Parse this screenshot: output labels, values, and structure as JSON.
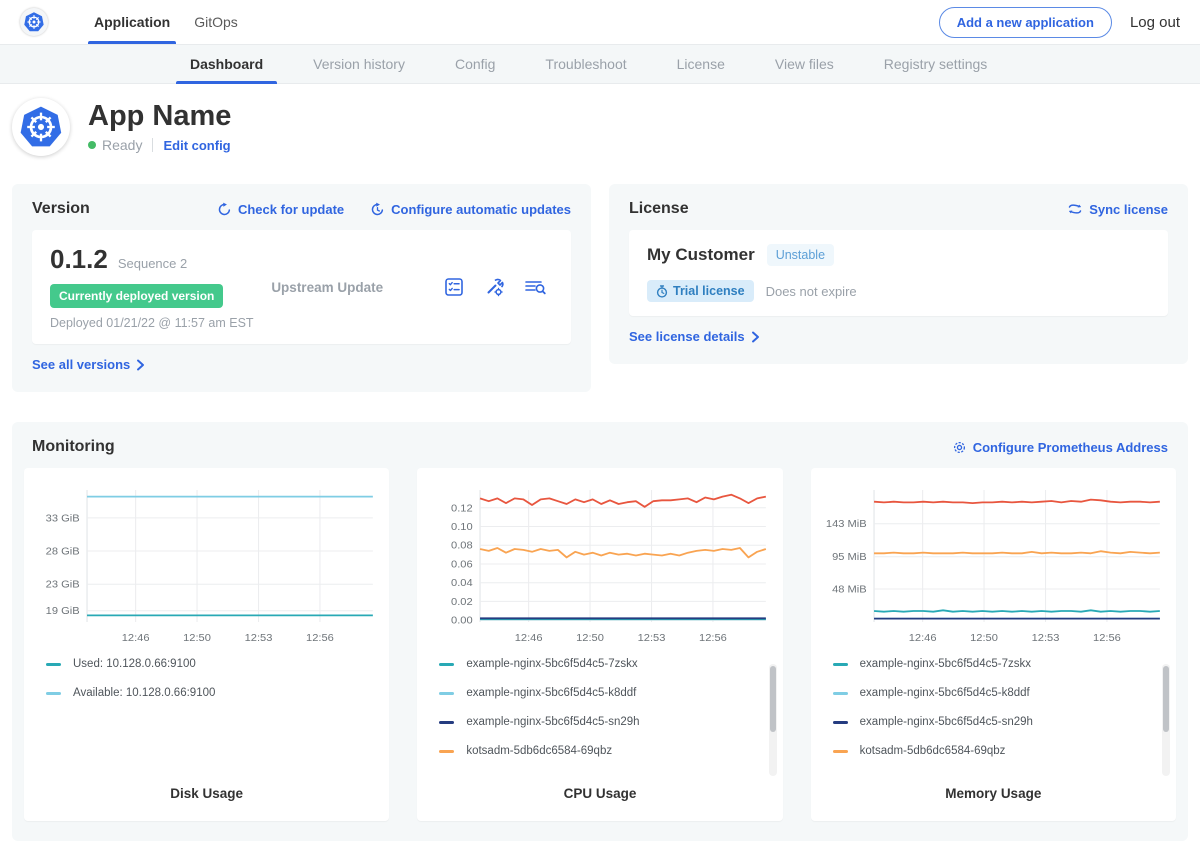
{
  "topbar": {
    "tabs": [
      {
        "label": "Application"
      },
      {
        "label": "GitOps"
      }
    ],
    "add_button_label": "Add a new application",
    "logout_label": "Log out"
  },
  "subnav": {
    "tabs": [
      "Dashboard",
      "Version history",
      "Config",
      "Troubleshoot",
      "License",
      "View files",
      "Registry settings"
    ],
    "active": "Dashboard"
  },
  "app_header": {
    "title": "App Name",
    "status": "Ready",
    "edit_config_label": "Edit config"
  },
  "version_card": {
    "title": "Version",
    "check_for_update_label": "Check for update",
    "configure_updates_label": "Configure automatic updates",
    "version_number": "0.1.2",
    "sequence": "Sequence 2",
    "deployed_badge": "Currently deployed version",
    "deployed_at": "Deployed 01/21/22 @ 11:57 am EST",
    "upstream_label": "Upstream Update",
    "see_all_label": "See all versions"
  },
  "license_card": {
    "title": "License",
    "sync_label": "Sync license",
    "customer_name": "My Customer",
    "channel": "Unstable",
    "type_badge": "Trial license",
    "expiry": "Does not expire",
    "see_details_label": "See license details"
  },
  "monitoring": {
    "title": "Monitoring",
    "configure_label": "Configure Prometheus Address"
  },
  "colors": {
    "accent_blue": "#3065e0",
    "k8s_blue": "#326de6",
    "green_badge": "#44c98c",
    "ready_green": "#44bb66",
    "panel_bg": "#f5f8f9",
    "series_teal": "#28a9b5",
    "series_light_blue": "#7fcde4",
    "series_navy": "#253c80",
    "series_orange": "#f9a452",
    "series_red": "#e8563f"
  },
  "chart_data": [
    {
      "type": "line",
      "title": "Disk Usage",
      "ylim": [
        17.3,
        37.2
      ],
      "y_ticks": [
        {
          "value": 33,
          "label": "33 GiB"
        },
        {
          "value": 28,
          "label": "28 GiB"
        },
        {
          "value": 23,
          "label": "23 GiB"
        },
        {
          "value": 19,
          "label": "19 GiB"
        }
      ],
      "x_ticks": [
        {
          "pos": 0.17,
          "label": "12:46"
        },
        {
          "pos": 0.385,
          "label": "12:50"
        },
        {
          "pos": 0.6,
          "label": "12:53"
        },
        {
          "pos": 0.815,
          "label": "12:56"
        }
      ],
      "series": [
        {
          "name": "Available: 10.128.0.66:9100",
          "color": "#7fcde4",
          "legend_order": 2,
          "values": [
            36.2,
            36.2
          ]
        },
        {
          "name": "Used: 10.128.0.66:9100",
          "color": "#28a9b5",
          "legend_order": 1,
          "values": [
            18.3,
            18.3
          ]
        }
      ],
      "legend": [
        "Used: 10.128.0.66:9100",
        "Available: 10.128.0.66:9100"
      ]
    },
    {
      "type": "line",
      "title": "CPU Usage",
      "ylim": [
        -0.002,
        0.139
      ],
      "y_ticks": [
        {
          "value": 0.12,
          "label": "0.12"
        },
        {
          "value": 0.1,
          "label": "0.10"
        },
        {
          "value": 0.08,
          "label": "0.08"
        },
        {
          "value": 0.06,
          "label": "0.06"
        },
        {
          "value": 0.04,
          "label": "0.04"
        },
        {
          "value": 0.02,
          "label": "0.02"
        },
        {
          "value": 0.0,
          "label": "0.00"
        }
      ],
      "x_ticks": [
        {
          "pos": 0.17,
          "label": "12:46"
        },
        {
          "pos": 0.385,
          "label": "12:50"
        },
        {
          "pos": 0.6,
          "label": "12:53"
        },
        {
          "pos": 0.815,
          "label": "12:56"
        }
      ],
      "series": [
        {
          "color": "#e8563f",
          "in_legend": false,
          "values": [
            0.13,
            0.127,
            0.13,
            0.125,
            0.13,
            0.129,
            0.123,
            0.129,
            0.13,
            0.127,
            0.124,
            0.129,
            0.126,
            0.129,
            0.124,
            0.128,
            0.124,
            0.126,
            0.127,
            0.121,
            0.127,
            0.128,
            0.128,
            0.129,
            0.13,
            0.126,
            0.131,
            0.129,
            0.132,
            0.134,
            0.13,
            0.125,
            0.13,
            0.132
          ]
        },
        {
          "name": "kotsadm-5db6dc6584-69qbz",
          "color": "#f9a452",
          "in_legend": false,
          "values": [
            0.076,
            0.074,
            0.077,
            0.072,
            0.076,
            0.075,
            0.073,
            0.076,
            0.074,
            0.075,
            0.067,
            0.073,
            0.07,
            0.072,
            0.069,
            0.072,
            0.07,
            0.071,
            0.069,
            0.071,
            0.07,
            0.069,
            0.071,
            0.069,
            0.072,
            0.074,
            0.075,
            0.074,
            0.076,
            0.075,
            0.077,
            0.067,
            0.073,
            0.076
          ]
        },
        {
          "name": "example-nginx-5bc6f5d4c5-k8ddf",
          "color": "#7fcde4",
          "in_legend": false,
          "values": [
            0.001,
            0.001
          ]
        },
        {
          "name": "example-nginx-5bc6f5d4c5-7zskx",
          "color": "#28a9b5",
          "in_legend": false,
          "values": [
            0.001,
            0.001
          ]
        },
        {
          "name": "example-nginx-5bc6f5d4c5-sn29h",
          "color": "#253c80",
          "in_legend": false,
          "values": [
            0.002,
            0.002
          ]
        }
      ],
      "legend_items": [
        {
          "name": "example-nginx-5bc6f5d4c5-7zskx",
          "color": "#28a9b5"
        },
        {
          "name": "example-nginx-5bc6f5d4c5-k8ddf",
          "color": "#7fcde4"
        },
        {
          "name": "example-nginx-5bc6f5d4c5-sn29h",
          "color": "#253c80"
        },
        {
          "name": "kotsadm-5db6dc6584-69qbz",
          "color": "#f9a452"
        }
      ],
      "has_scrollbar": true
    },
    {
      "type": "line",
      "title": "Memory Usage",
      "ylim": [
        0,
        192
      ],
      "y_ticks": [
        {
          "value": 143,
          "label": "143 MiB"
        },
        {
          "value": 95,
          "label": "95 MiB"
        },
        {
          "value": 48,
          "label": "48 MiB"
        }
      ],
      "x_ticks": [
        {
          "pos": 0.17,
          "label": "12:46"
        },
        {
          "pos": 0.385,
          "label": "12:50"
        },
        {
          "pos": 0.6,
          "label": "12:53"
        },
        {
          "pos": 0.815,
          "label": "12:56"
        }
      ],
      "series": [
        {
          "color": "#e8563f",
          "in_legend": false,
          "values": [
            175,
            174,
            175,
            174,
            174,
            175,
            174,
            175,
            174,
            174,
            173,
            174,
            174,
            175,
            174,
            175,
            174,
            175,
            176,
            174,
            176,
            175,
            178,
            177,
            175,
            174,
            175,
            175,
            174,
            175
          ]
        },
        {
          "name": "kotsadm-5db6dc6584-69qbz",
          "color": "#f9a452",
          "in_legend": false,
          "values": [
            100,
            100,
            101,
            100,
            100,
            101,
            100,
            100,
            100,
            101,
            100,
            100,
            100,
            101,
            100,
            100,
            102,
            100,
            101,
            100,
            100,
            101,
            100,
            103,
            101,
            100,
            102,
            101,
            100,
            101
          ]
        },
        {
          "name": "example-nginx-5bc6f5d4c5-k8ddf",
          "color": "#7fcde4",
          "in_legend": false,
          "values": [
            5,
            5
          ]
        },
        {
          "name": "example-nginx-5bc6f5d4c5-7zskx",
          "color": "#28a9b5",
          "in_legend": false,
          "values": [
            16,
            15,
            16,
            15,
            16,
            16,
            15,
            17,
            15,
            16,
            15,
            16,
            15,
            16,
            15,
            16,
            15,
            16,
            15,
            16,
            16,
            15,
            17,
            15,
            16,
            15,
            16,
            16,
            15,
            16
          ]
        },
        {
          "name": "example-nginx-5bc6f5d4c5-sn29h",
          "color": "#253c80",
          "in_legend": false,
          "values": [
            5,
            5
          ]
        }
      ],
      "legend_items": [
        {
          "name": "example-nginx-5bc6f5d4c5-7zskx",
          "color": "#28a9b5"
        },
        {
          "name": "example-nginx-5bc6f5d4c5-k8ddf",
          "color": "#7fcde4"
        },
        {
          "name": "example-nginx-5bc6f5d4c5-sn29h",
          "color": "#253c80"
        },
        {
          "name": "kotsadm-5db6dc6584-69qbz",
          "color": "#f9a452"
        }
      ],
      "has_scrollbar": true
    }
  ]
}
